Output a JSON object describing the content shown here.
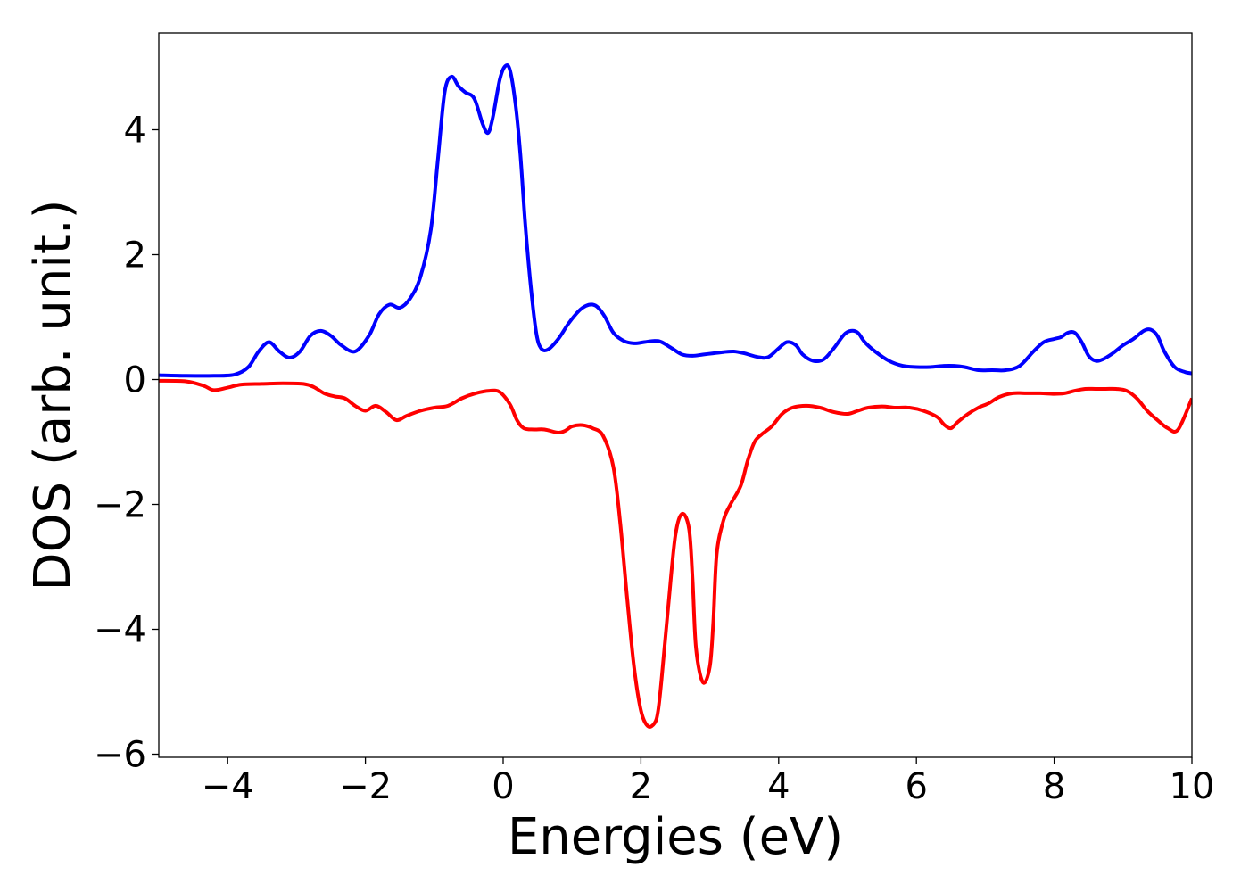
{
  "chart_data": {
    "type": "line",
    "title": "",
    "xlabel": "Energies (eV)",
    "ylabel": "DOS (arb. unit.)",
    "xlim": [
      -5,
      10
    ],
    "ylim": [
      -6.05,
      5.55
    ],
    "xticks": [
      -4,
      -2,
      0,
      2,
      4,
      6,
      8,
      10
    ],
    "xtick_labels": [
      "−4",
      "−2",
      "0",
      "2",
      "4",
      "6",
      "8",
      "10"
    ],
    "yticks": [
      -6,
      -4,
      -2,
      0,
      2,
      4
    ],
    "ytick_labels": [
      "−6",
      "−4",
      "−2",
      "0",
      "2",
      "4"
    ],
    "grid": false,
    "legend": "none",
    "series": [
      {
        "color": "#0000ff",
        "x": [
          -5.0,
          -4.6,
          -4.2,
          -3.9,
          -3.7,
          -3.55,
          -3.4,
          -3.25,
          -3.1,
          -2.95,
          -2.8,
          -2.65,
          -2.5,
          -2.35,
          -2.15,
          -1.95,
          -1.8,
          -1.65,
          -1.5,
          -1.35,
          -1.2,
          -1.05,
          -0.95,
          -0.85,
          -0.75,
          -0.65,
          -0.55,
          -0.42,
          -0.3,
          -0.22,
          -0.15,
          -0.05,
          0.03,
          0.1,
          0.18,
          0.25,
          0.32,
          0.4,
          0.48,
          0.55,
          0.65,
          0.8,
          0.95,
          1.1,
          1.2,
          1.3,
          1.38,
          1.48,
          1.6,
          1.75,
          1.9,
          2.05,
          2.2,
          2.3,
          2.45,
          2.6,
          2.75,
          2.9,
          3.05,
          3.2,
          3.35,
          3.5,
          3.7,
          3.85,
          4.0,
          4.12,
          4.25,
          4.35,
          4.5,
          4.65,
          4.8,
          4.95,
          5.05,
          5.15,
          5.25,
          5.4,
          5.6,
          5.8,
          6.0,
          6.2,
          6.4,
          6.55,
          6.7,
          6.9,
          7.1,
          7.3,
          7.5,
          7.7,
          7.85,
          8.0,
          8.1,
          8.2,
          8.3,
          8.4,
          8.5,
          8.6,
          8.7,
          8.85,
          9.0,
          9.15,
          9.3,
          9.4,
          9.5,
          9.6,
          9.75,
          9.9,
          10.0
        ],
        "y": [
          0.07,
          0.06,
          0.06,
          0.08,
          0.2,
          0.45,
          0.6,
          0.45,
          0.35,
          0.45,
          0.7,
          0.78,
          0.7,
          0.55,
          0.45,
          0.7,
          1.05,
          1.2,
          1.15,
          1.3,
          1.65,
          2.4,
          3.5,
          4.6,
          4.85,
          4.7,
          4.6,
          4.5,
          4.1,
          3.95,
          4.2,
          4.8,
          5.02,
          4.95,
          4.4,
          3.6,
          2.5,
          1.5,
          0.75,
          0.5,
          0.48,
          0.65,
          0.9,
          1.1,
          1.18,
          1.2,
          1.15,
          1.0,
          0.75,
          0.62,
          0.58,
          0.6,
          0.62,
          0.6,
          0.5,
          0.4,
          0.38,
          0.4,
          0.42,
          0.44,
          0.45,
          0.42,
          0.36,
          0.36,
          0.5,
          0.6,
          0.55,
          0.4,
          0.3,
          0.32,
          0.5,
          0.72,
          0.78,
          0.75,
          0.6,
          0.45,
          0.3,
          0.22,
          0.2,
          0.2,
          0.22,
          0.22,
          0.2,
          0.15,
          0.15,
          0.15,
          0.22,
          0.45,
          0.6,
          0.65,
          0.68,
          0.75,
          0.75,
          0.6,
          0.38,
          0.3,
          0.32,
          0.42,
          0.55,
          0.65,
          0.78,
          0.8,
          0.7,
          0.45,
          0.2,
          0.12,
          0.1
        ]
      },
      {
        "color": "#ff0000",
        "x": [
          -5.0,
          -4.6,
          -4.35,
          -4.2,
          -4.0,
          -3.8,
          -3.5,
          -3.2,
          -2.9,
          -2.75,
          -2.6,
          -2.45,
          -2.3,
          -2.15,
          -2.0,
          -1.85,
          -1.7,
          -1.55,
          -1.4,
          -1.2,
          -1.0,
          -0.8,
          -0.6,
          -0.4,
          -0.2,
          -0.05,
          0.1,
          0.2,
          0.3,
          0.45,
          0.6,
          0.8,
          0.9,
          1.0,
          1.15,
          1.3,
          1.45,
          1.6,
          1.7,
          1.8,
          1.9,
          2.0,
          2.1,
          2.2,
          2.25,
          2.3,
          2.4,
          2.5,
          2.6,
          2.7,
          2.75,
          2.8,
          2.9,
          3.0,
          3.05,
          3.1,
          3.2,
          3.3,
          3.45,
          3.55,
          3.65,
          3.75,
          3.9,
          4.05,
          4.2,
          4.4,
          4.6,
          4.8,
          5.0,
          5.15,
          5.3,
          5.5,
          5.7,
          5.9,
          6.1,
          6.3,
          6.4,
          6.5,
          6.6,
          6.75,
          6.9,
          7.05,
          7.2,
          7.4,
          7.6,
          7.8,
          8.0,
          8.15,
          8.3,
          8.45,
          8.6,
          8.75,
          8.9,
          9.05,
          9.2,
          9.35,
          9.5,
          9.65,
          9.8,
          10.0
        ],
        "y": [
          -0.02,
          -0.03,
          -0.1,
          -0.17,
          -0.13,
          -0.08,
          -0.07,
          -0.06,
          -0.07,
          -0.12,
          -0.22,
          -0.27,
          -0.3,
          -0.42,
          -0.5,
          -0.42,
          -0.52,
          -0.65,
          -0.58,
          -0.5,
          -0.45,
          -0.42,
          -0.3,
          -0.22,
          -0.18,
          -0.2,
          -0.4,
          -0.65,
          -0.78,
          -0.8,
          -0.8,
          -0.85,
          -0.82,
          -0.75,
          -0.73,
          -0.78,
          -0.9,
          -1.4,
          -2.3,
          -3.5,
          -4.6,
          -5.3,
          -5.55,
          -5.5,
          -5.3,
          -4.8,
          -3.6,
          -2.5,
          -2.15,
          -2.4,
          -3.2,
          -4.3,
          -4.85,
          -4.6,
          -3.9,
          -2.8,
          -2.25,
          -2.0,
          -1.7,
          -1.3,
          -1.0,
          -0.88,
          -0.75,
          -0.55,
          -0.45,
          -0.42,
          -0.45,
          -0.52,
          -0.55,
          -0.5,
          -0.45,
          -0.43,
          -0.45,
          -0.45,
          -0.5,
          -0.6,
          -0.72,
          -0.78,
          -0.68,
          -0.55,
          -0.45,
          -0.38,
          -0.28,
          -0.22,
          -0.22,
          -0.22,
          -0.23,
          -0.22,
          -0.18,
          -0.15,
          -0.15,
          -0.15,
          -0.15,
          -0.18,
          -0.3,
          -0.5,
          -0.65,
          -0.78,
          -0.8,
          -0.3
        ]
      }
    ]
  }
}
